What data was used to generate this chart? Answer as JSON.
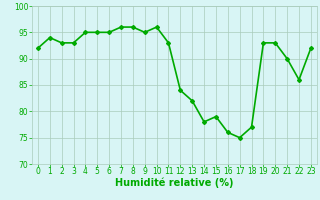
{
  "x": [
    0,
    1,
    2,
    3,
    4,
    5,
    6,
    7,
    8,
    9,
    10,
    11,
    12,
    13,
    14,
    15,
    16,
    17,
    18,
    19,
    20,
    21,
    22,
    23
  ],
  "y": [
    92,
    94,
    93,
    93,
    95,
    95,
    95,
    96,
    96,
    95,
    96,
    93,
    84,
    82,
    78,
    79,
    76,
    75,
    77,
    93,
    93,
    90,
    86,
    92
  ],
  "line_color": "#00aa00",
  "marker": "D",
  "marker_size": 2,
  "bg_color": "#d8f5f5",
  "grid_color": "#aaccbb",
  "xlabel": "Humidité relative (%)",
  "xlabel_color": "#00aa00",
  "ylim": [
    70,
    100
  ],
  "xlim": [
    -0.5,
    23.5
  ],
  "yticks": [
    70,
    75,
    80,
    85,
    90,
    95,
    100
  ],
  "xticks": [
    0,
    1,
    2,
    3,
    4,
    5,
    6,
    7,
    8,
    9,
    10,
    11,
    12,
    13,
    14,
    15,
    16,
    17,
    18,
    19,
    20,
    21,
    22,
    23
  ],
  "tick_label_color": "#00aa00",
  "tick_label_fontsize": 5.5,
  "xlabel_fontsize": 7,
  "linewidth": 1.2
}
